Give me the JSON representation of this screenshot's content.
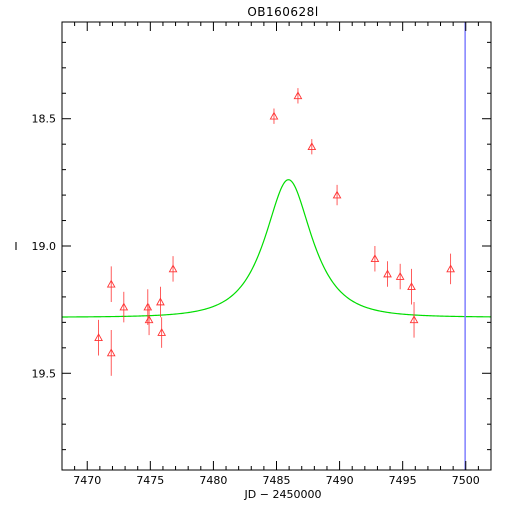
{
  "chart_data": {
    "type": "scatter",
    "title": "OB160628l",
    "xlabel": "JD − 2450000",
    "ylabel": "I",
    "xlim": [
      7468,
      7502
    ],
    "ylim": [
      19.88,
      18.12
    ],
    "y_inverted": true,
    "grid": false,
    "x_ticks": [
      7470,
      7475,
      7480,
      7485,
      7490,
      7495,
      7500
    ],
    "y_ticks": [
      18.5,
      19.0,
      19.5
    ],
    "y_tick_labels": [
      "18.5",
      "19.0",
      "19.5"
    ],
    "colors": {
      "points": "#ff3333",
      "model": "#00dd00",
      "vline": "#8080ff",
      "axes": "#000000"
    },
    "series": [
      {
        "kind": "points",
        "marker": "triangle-open",
        "points": [
          {
            "x": 7470.9,
            "y": 19.36,
            "err": 0.07
          },
          {
            "x": 7471.9,
            "y": 19.15,
            "err": 0.07
          },
          {
            "x": 7471.9,
            "y": 19.42,
            "err": 0.09
          },
          {
            "x": 7472.9,
            "y": 19.24,
            "err": 0.06
          },
          {
            "x": 7474.8,
            "y": 19.24,
            "err": 0.07
          },
          {
            "x": 7474.9,
            "y": 19.29,
            "err": 0.06
          },
          {
            "x": 7475.8,
            "y": 19.22,
            "err": 0.06
          },
          {
            "x": 7475.9,
            "y": 19.34,
            "err": 0.06
          },
          {
            "x": 7476.8,
            "y": 19.09,
            "err": 0.05
          },
          {
            "x": 7484.8,
            "y": 18.49,
            "err": 0.03
          },
          {
            "x": 7486.7,
            "y": 18.41,
            "err": 0.03
          },
          {
            "x": 7487.8,
            "y": 18.61,
            "err": 0.03
          },
          {
            "x": 7489.8,
            "y": 18.8,
            "err": 0.04
          },
          {
            "x": 7492.8,
            "y": 19.05,
            "err": 0.05
          },
          {
            "x": 7493.8,
            "y": 19.11,
            "err": 0.05
          },
          {
            "x": 7494.8,
            "y": 19.12,
            "err": 0.05
          },
          {
            "x": 7495.7,
            "y": 19.16,
            "err": 0.07
          },
          {
            "x": 7495.9,
            "y": 19.29,
            "err": 0.07
          },
          {
            "x": 7498.8,
            "y": 19.09,
            "err": 0.06
          }
        ]
      },
      {
        "kind": "model",
        "style": "line",
        "base_mag": 19.28,
        "t0": 7485.95,
        "tE": 3.0,
        "u0": 0.6,
        "fs": 0.73
      }
    ],
    "vline_x": 7499.95
  }
}
